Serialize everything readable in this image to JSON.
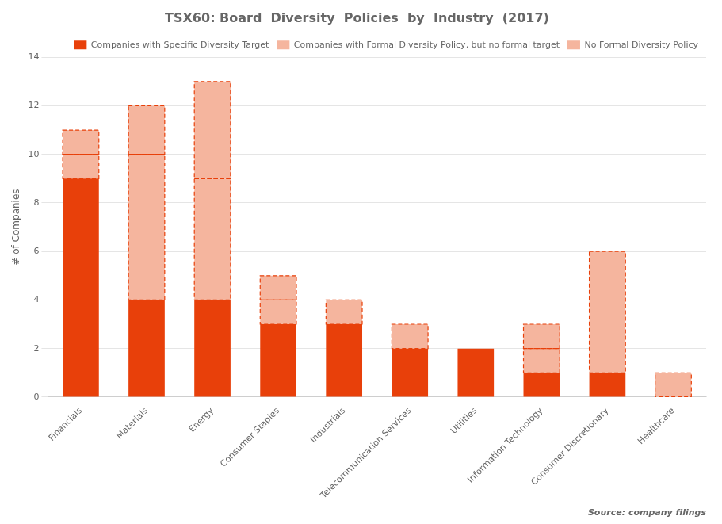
{
  "chart_data": {
    "type": "bar",
    "stacked": true,
    "title": "TSX60: Board  Diversity  Policies  by  Industry  (2017)",
    "y_label": "# of Companies",
    "categories": [
      "Financials",
      "Materials",
      "Energy",
      "Consumer Staples",
      "Industrials",
      "Telecommunication Services",
      "Utilities",
      "Information Technology",
      "Consumer Discretionary",
      "Healthcare"
    ],
    "series": [
      {
        "name": "Companies with Specific Diversity Target",
        "color": "#E8400A",
        "values": [
          9,
          4,
          4,
          3,
          3,
          2,
          2,
          1,
          1,
          0
        ]
      },
      {
        "name": "Companies with Formal Diversity Policy, but no formal target",
        "color": "#F5B59E",
        "values": [
          1,
          6,
          5,
          1,
          1,
          1,
          0,
          1,
          0,
          1
        ]
      },
      {
        "name": "No Formal Diversity Policy",
        "color": "#F5B59E",
        "values": [
          1,
          2,
          4,
          1,
          0,
          0,
          0,
          1,
          5,
          0
        ]
      }
    ],
    "ylim": [
      0,
      14
    ],
    "yticks": [
      0,
      2,
      4,
      6,
      8,
      10,
      12,
      14
    ],
    "grid": true,
    "legend": "upper right",
    "annotations": [
      "Source: company filings"
    ]
  }
}
